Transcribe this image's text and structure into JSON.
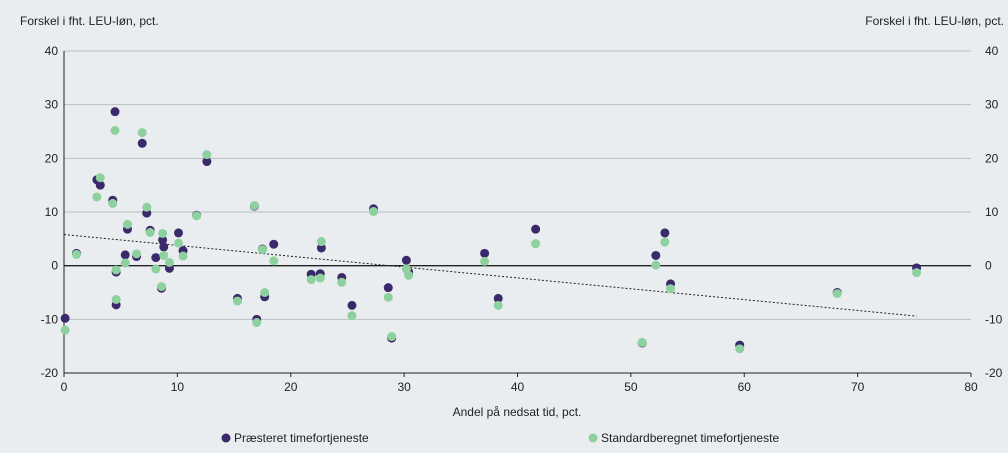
{
  "chart_data": {
    "type": "scatter",
    "ylabel_left": "Forskel i fht. LEU-løn, pct.",
    "ylabel_right": "Forskel i fht. LEU-løn, pct.",
    "xlabel": "Andel på nedsat tid, pct.",
    "xlim": [
      0,
      80
    ],
    "ylim": [
      -20,
      40
    ],
    "x_ticks": [
      0,
      10,
      20,
      30,
      40,
      50,
      60,
      70,
      80
    ],
    "y_ticks": [
      -20,
      -10,
      0,
      10,
      20,
      30,
      40
    ],
    "grid": "horizontal",
    "legend_position": "bottom",
    "series": [
      {
        "name": "Præsteret timefortjeneste",
        "color": "#3b2a6b",
        "points": [
          [
            0.1,
            -9.8
          ],
          [
            1.1,
            2.3
          ],
          [
            2.9,
            16.0
          ],
          [
            3.2,
            15.0
          ],
          [
            4.3,
            12.2
          ],
          [
            4.5,
            28.7
          ],
          [
            4.6,
            -7.3
          ],
          [
            4.6,
            -1.2
          ],
          [
            5.4,
            2.0
          ],
          [
            5.6,
            6.8
          ],
          [
            6.4,
            1.7
          ],
          [
            6.9,
            22.8
          ],
          [
            7.3,
            9.8
          ],
          [
            7.6,
            6.6
          ],
          [
            8.1,
            1.5
          ],
          [
            8.6,
            -4.2
          ],
          [
            8.7,
            4.8
          ],
          [
            8.8,
            3.5
          ],
          [
            9.3,
            -0.5
          ],
          [
            10.1,
            6.1
          ],
          [
            10.5,
            2.8
          ],
          [
            11.7,
            9.4
          ],
          [
            12.6,
            19.4
          ],
          [
            15.3,
            -6.1
          ],
          [
            16.8,
            11.1
          ],
          [
            17.0,
            -10.0
          ],
          [
            17.5,
            3.1
          ],
          [
            17.7,
            -5.8
          ],
          [
            18.5,
            4.0
          ],
          [
            21.8,
            -1.6
          ],
          [
            22.6,
            -1.5
          ],
          [
            22.7,
            3.3
          ],
          [
            24.5,
            -2.2
          ],
          [
            25.4,
            -7.4
          ],
          [
            27.3,
            10.6
          ],
          [
            28.6,
            -4.1
          ],
          [
            28.9,
            -13.5
          ],
          [
            30.2,
            1.0
          ],
          [
            30.4,
            -1.2
          ],
          [
            37.1,
            2.3
          ],
          [
            38.3,
            -6.1
          ],
          [
            41.6,
            6.8
          ],
          [
            51.0,
            -14.4
          ],
          [
            52.2,
            1.9
          ],
          [
            53.0,
            6.1
          ],
          [
            53.5,
            -3.4
          ],
          [
            59.6,
            -14.8
          ],
          [
            68.2,
            -5.0
          ],
          [
            75.2,
            -0.4
          ]
        ]
      },
      {
        "name": "Standardberegnet timefortjeneste",
        "color": "#8fd19e",
        "points": [
          [
            0.1,
            -12.0
          ],
          [
            1.1,
            2.1
          ],
          [
            2.9,
            12.8
          ],
          [
            3.2,
            16.4
          ],
          [
            4.3,
            11.6
          ],
          [
            4.5,
            25.2
          ],
          [
            4.6,
            -6.3
          ],
          [
            4.6,
            -0.8
          ],
          [
            5.4,
            0.5
          ],
          [
            5.6,
            7.7
          ],
          [
            6.4,
            2.2
          ],
          [
            6.9,
            24.8
          ],
          [
            7.3,
            10.9
          ],
          [
            7.6,
            6.2
          ],
          [
            8.1,
            -0.6
          ],
          [
            8.6,
            -3.9
          ],
          [
            8.7,
            6.0
          ],
          [
            8.8,
            1.9
          ],
          [
            9.3,
            0.6
          ],
          [
            10.1,
            4.2
          ],
          [
            10.5,
            1.8
          ],
          [
            11.7,
            9.3
          ],
          [
            12.6,
            20.7
          ],
          [
            15.3,
            -6.6
          ],
          [
            16.8,
            11.2
          ],
          [
            17.0,
            -10.6
          ],
          [
            17.5,
            3.0
          ],
          [
            17.7,
            -5.0
          ],
          [
            18.5,
            0.9
          ],
          [
            21.8,
            -2.6
          ],
          [
            22.6,
            -2.3
          ],
          [
            22.7,
            4.5
          ],
          [
            24.5,
            -3.1
          ],
          [
            25.4,
            -9.3
          ],
          [
            27.3,
            10.1
          ],
          [
            28.6,
            -5.9
          ],
          [
            28.9,
            -13.2
          ],
          [
            30.2,
            -0.6
          ],
          [
            30.4,
            -1.8
          ],
          [
            37.1,
            0.8
          ],
          [
            38.3,
            -7.4
          ],
          [
            41.6,
            4.1
          ],
          [
            51.0,
            -14.3
          ],
          [
            52.2,
            0.1
          ],
          [
            53.0,
            4.4
          ],
          [
            53.5,
            -4.3
          ],
          [
            59.6,
            -15.5
          ],
          [
            68.2,
            -5.2
          ],
          [
            75.2,
            -1.3
          ]
        ]
      }
    ],
    "trendline": {
      "x": [
        0,
        75.2
      ],
      "y": [
        5.8,
        -9.4
      ]
    }
  }
}
